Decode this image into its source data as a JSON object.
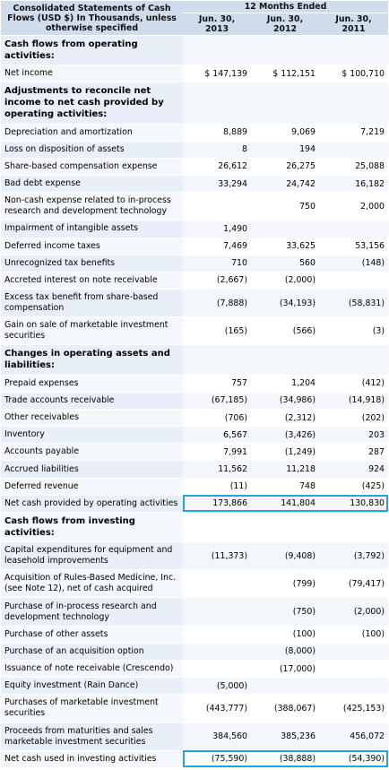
{
  "header": {
    "title": "Consolidated Statements of Cash Flows (USD $) In Thousands, unless otherwise specified",
    "period_label": "12 Months Ended",
    "columns": [
      "Jun. 30, 2013",
      "Jun. 30, 2012",
      "Jun. 30, 2011"
    ]
  },
  "rows": [
    {
      "label": "Cash flows from operating activities:",
      "section": true,
      "values": [
        "",
        "",
        ""
      ]
    },
    {
      "label": "Net income",
      "values": [
        "$ 147,139",
        "$ 112,151",
        "$ 100,710"
      ]
    },
    {
      "label": "Adjustments to reconcile net income to net cash provided by operating activities:",
      "section": true,
      "values": [
        "",
        "",
        ""
      ]
    },
    {
      "label": "Depreciation and amortization",
      "values": [
        "8,889",
        "9,069",
        "7,219"
      ]
    },
    {
      "label": "Loss on disposition of assets",
      "values": [
        "8",
        "194",
        ""
      ]
    },
    {
      "label": "Share-based compensation expense",
      "values": [
        "26,612",
        "26,275",
        "25,088"
      ]
    },
    {
      "label": "Bad debt expense",
      "values": [
        "33,294",
        "24,742",
        "16,182"
      ]
    },
    {
      "label": "Non-cash expense related to in-process research and development technology",
      "values": [
        "",
        "750",
        "2,000"
      ]
    },
    {
      "label": "Impairment of intangible assets",
      "values": [
        "1,490",
        "",
        ""
      ]
    },
    {
      "label": "Deferred income taxes",
      "values": [
        "7,469",
        "33,625",
        "53,156"
      ]
    },
    {
      "label": "Unrecognized tax benefits",
      "values": [
        "710",
        "560",
        "(148)"
      ]
    },
    {
      "label": "Accreted interest on note receivable",
      "values": [
        "(2,667)",
        "(2,000)",
        ""
      ]
    },
    {
      "label": "Excess tax benefit from share-based compensation",
      "values": [
        "(7,888)",
        "(34,193)",
        "(58,831)"
      ]
    },
    {
      "label": "Gain on sale of marketable investment securities",
      "values": [
        "(165)",
        "(566)",
        "(3)"
      ]
    },
    {
      "label": "Changes in operating assets and liabilities:",
      "section": true,
      "values": [
        "",
        "",
        ""
      ]
    },
    {
      "label": "Prepaid expenses",
      "values": [
        "757",
        "1,204",
        "(412)"
      ]
    },
    {
      "label": "Trade accounts receivable",
      "values": [
        "(67,185)",
        "(34,986)",
        "(14,918)"
      ]
    },
    {
      "label": "Other receivables",
      "values": [
        "(706)",
        "(2,312)",
        "(202)"
      ]
    },
    {
      "label": "Inventory",
      "values": [
        "6,567",
        "(3,426)",
        "203"
      ]
    },
    {
      "label": "Accounts payable",
      "values": [
        "7,991",
        "(1,249)",
        "287"
      ]
    },
    {
      "label": "Accrued liabilities",
      "values": [
        "11,562",
        "11,218",
        "924"
      ]
    },
    {
      "label": "Deferred revenue",
      "values": [
        "(11)",
        "748",
        "(425)"
      ]
    },
    {
      "label": "Net cash provided by operating activities",
      "highlight": true,
      "values": [
        "173,866",
        "141,804",
        "130,830"
      ]
    },
    {
      "label": "Cash flows from investing activities:",
      "section": true,
      "values": [
        "",
        "",
        ""
      ]
    },
    {
      "label": "Capital expenditures for equipment and leasehold improvements",
      "values": [
        "(11,373)",
        "(9,408)",
        "(3,792)"
      ]
    },
    {
      "label": "Acquisition of Rules-Based Medicine, Inc. (see Note 12), net of cash acquired",
      "values": [
        "",
        "(799)",
        "(79,417)"
      ]
    },
    {
      "label": "Purchase of in-process research and development technology",
      "values": [
        "",
        "(750)",
        "(2,000)"
      ]
    },
    {
      "label": "Purchase of other assets",
      "values": [
        "",
        "(100)",
        "(100)"
      ]
    },
    {
      "label": "Purchase of an acquisition option",
      "values": [
        "",
        "(8,000)",
        ""
      ]
    },
    {
      "label": "Issuance of note receivable (Crescendo)",
      "values": [
        "",
        "(17,000)",
        ""
      ]
    },
    {
      "label": "Equity investment (Rain Dance)",
      "values": [
        "(5,000)",
        "",
        ""
      ]
    },
    {
      "label": "Purchases of marketable investment securities",
      "values": [
        "(443,777)",
        "(388,067)",
        "(425,153)"
      ]
    },
    {
      "label": "Proceeds from maturities and sales marketable investment securities",
      "values": [
        "384,560",
        "385,236",
        "456,072"
      ]
    },
    {
      "label": "Net cash used in investing activities",
      "highlight": true,
      "values": [
        "(75,590)",
        "(38,888)",
        "(54,390)"
      ]
    }
  ],
  "colors": {
    "header_bg": "#cfdcec",
    "highlight_border": "#29a3d4"
  }
}
